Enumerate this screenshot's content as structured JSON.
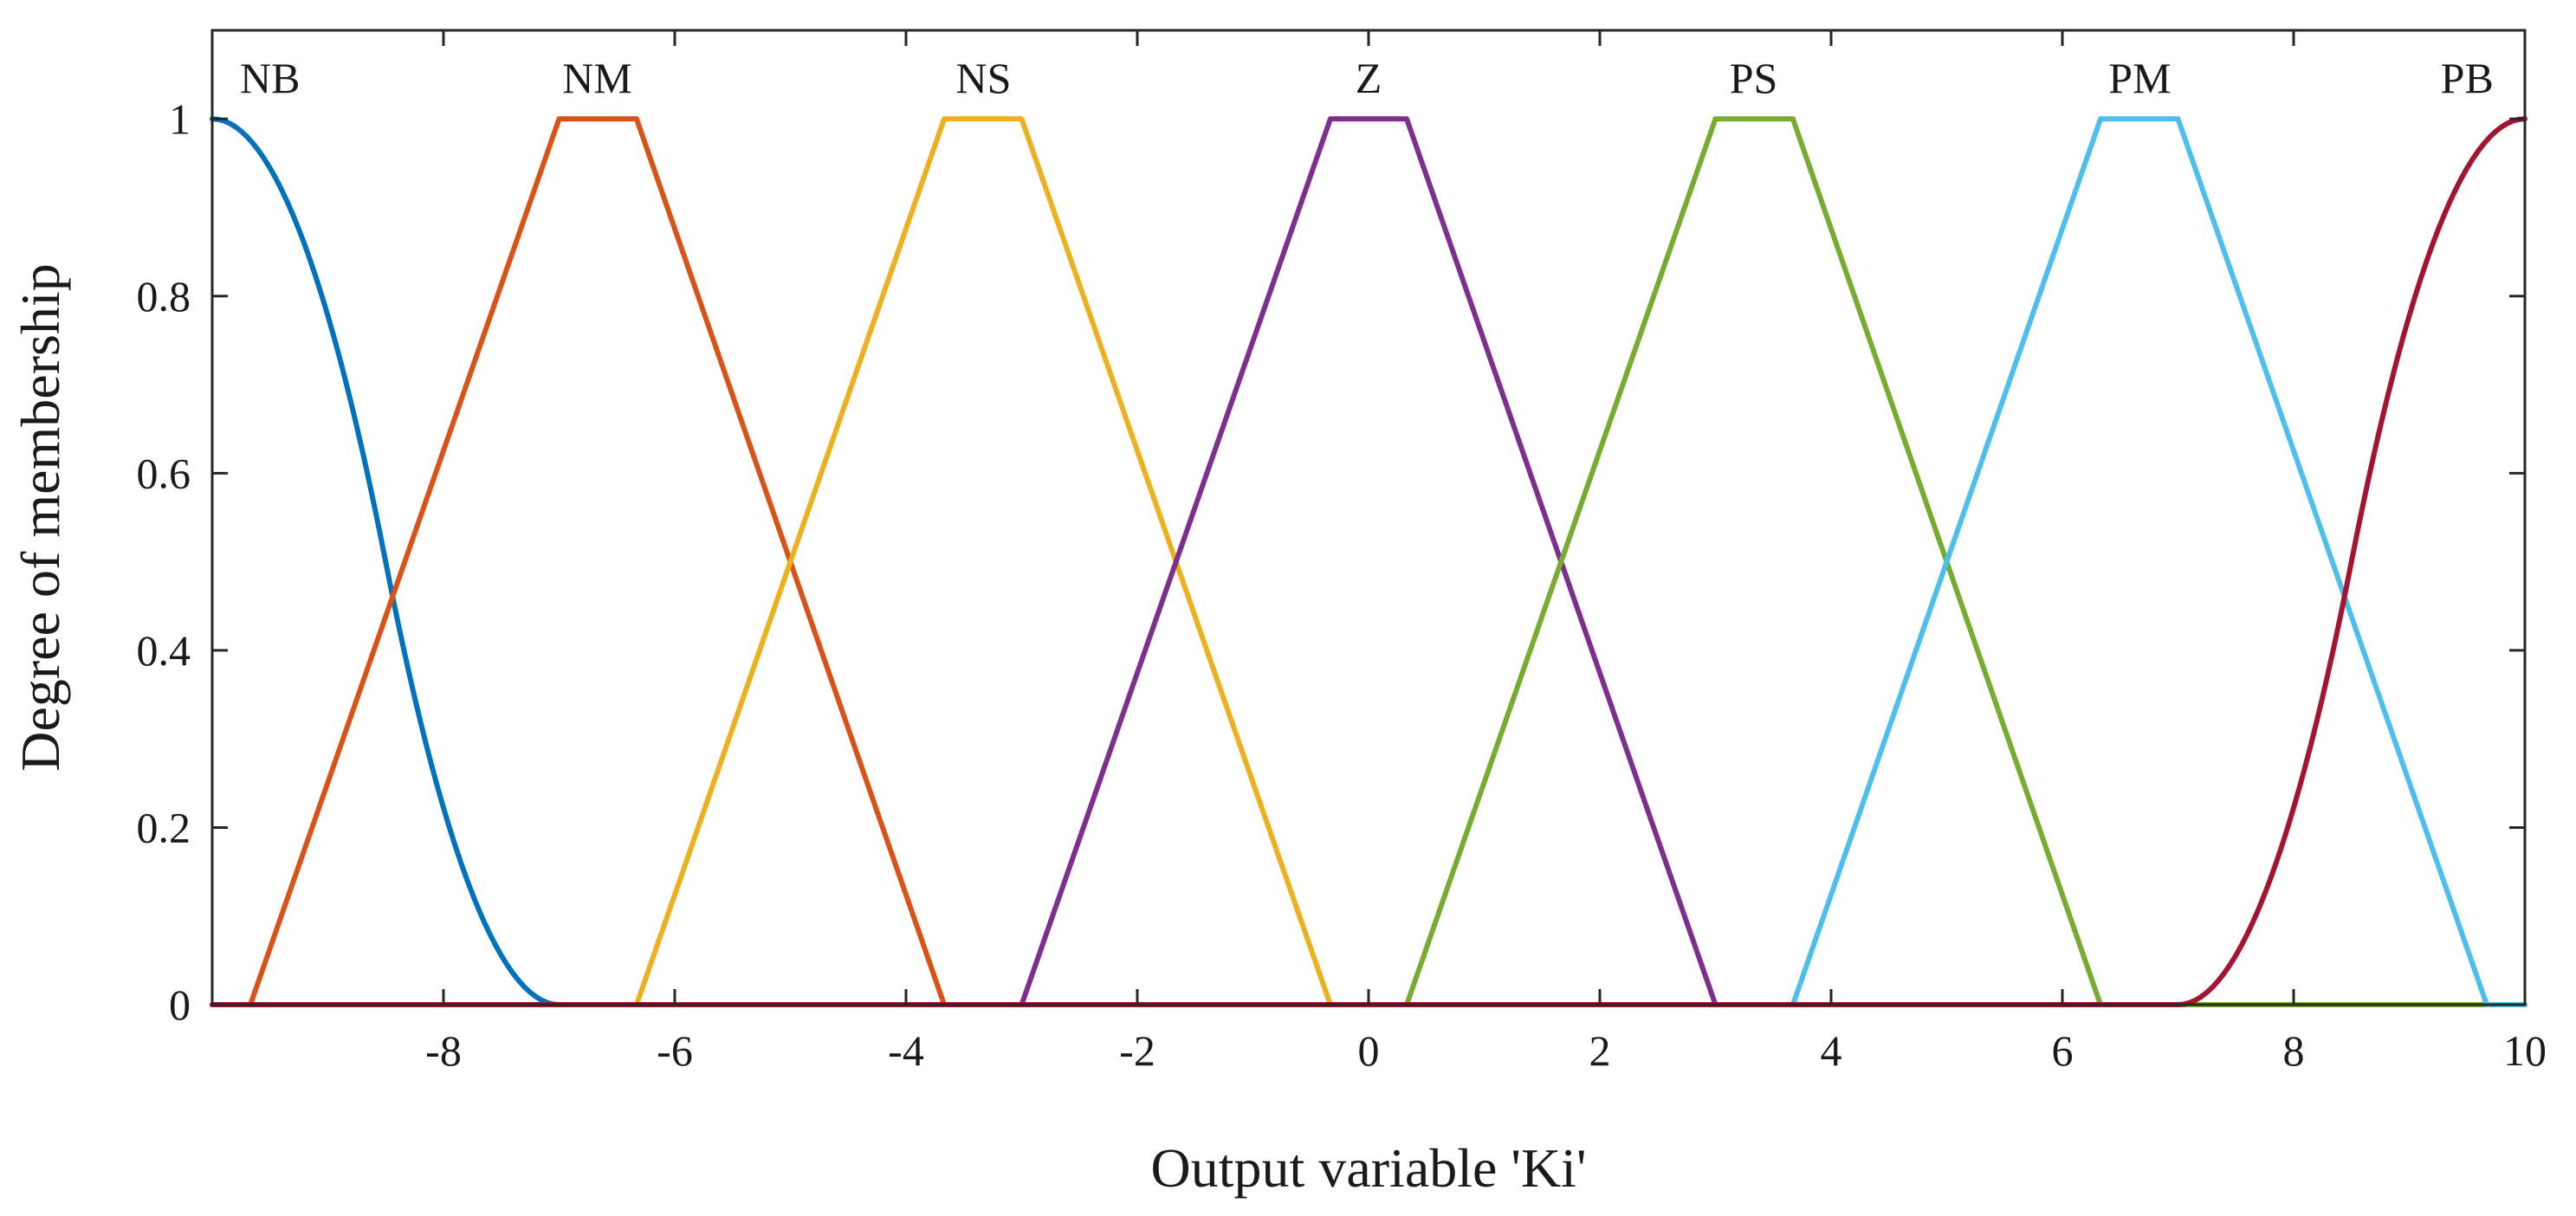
{
  "chart_data": {
    "type": "line",
    "title": "",
    "xlabel": "Output variable 'Ki'",
    "ylabel": "Degree of membership",
    "xlim": [
      -10,
      10
    ],
    "ylim": [
      0,
      1.1
    ],
    "xticks": [
      -8,
      -6,
      -4,
      -2,
      0,
      2,
      4,
      6,
      8,
      10
    ],
    "xtick_labels": [
      "-8",
      "-6",
      "-4",
      "-2",
      "0",
      "2",
      "4",
      "6",
      "8",
      "10"
    ],
    "yticks": [
      0,
      0.2,
      0.4,
      0.6,
      0.8,
      1
    ],
    "ytick_labels": [
      "0",
      "0.2",
      "0.4",
      "0.6",
      "0.8",
      "1"
    ],
    "grid": false,
    "series": [
      {
        "name": "NB",
        "shape": "zmf",
        "params": [
          -10,
          -7
        ],
        "color": "#0072BD"
      },
      {
        "name": "NM",
        "shape": "trapmf",
        "params": [
          -9.67,
          -7,
          -6.33,
          -3.67
        ],
        "color": "#D95319"
      },
      {
        "name": "NS",
        "shape": "trapmf",
        "params": [
          -6.33,
          -3.67,
          -3,
          -0.33
        ],
        "color": "#EDB120"
      },
      {
        "name": "Z",
        "shape": "trapmf",
        "params": [
          -3,
          -0.33,
          0.33,
          3
        ],
        "color": "#7E2F8E"
      },
      {
        "name": "PS",
        "shape": "trapmf",
        "params": [
          0.33,
          3,
          3.67,
          6.33
        ],
        "color": "#77AC30"
      },
      {
        "name": "PM",
        "shape": "trapmf",
        "params": [
          3.67,
          6.33,
          7,
          9.67
        ],
        "color": "#4DBEEE"
      },
      {
        "name": "PB",
        "shape": "smf",
        "params": [
          7,
          10
        ],
        "color": "#A2142F"
      }
    ],
    "mf_labels": [
      {
        "text": "NB",
        "x": -9.5
      },
      {
        "text": "NM",
        "x": -6.67
      },
      {
        "text": "NS",
        "x": -3.33
      },
      {
        "text": "Z",
        "x": 0
      },
      {
        "text": "PS",
        "x": 3.33
      },
      {
        "text": "PM",
        "x": 6.67
      },
      {
        "text": "PB",
        "x": 9.5
      }
    ]
  }
}
